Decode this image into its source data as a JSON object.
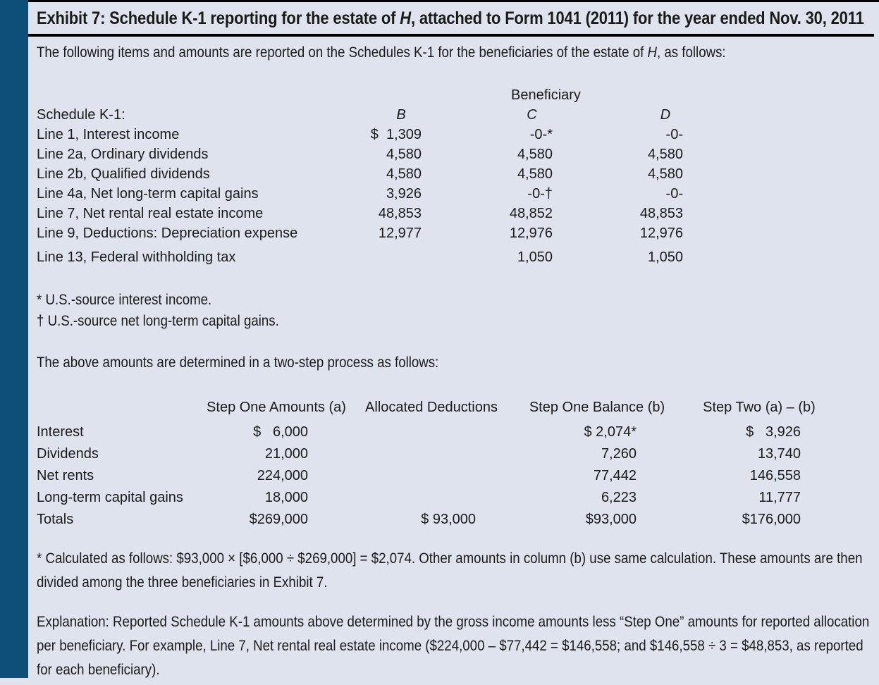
{
  "exhibit": {
    "title_pre": "Exhibit 7: Schedule K-1 reporting for the estate of ",
    "title_emph": "H",
    "title_post": ", attached to Form 1041 (2011) for the year ended Nov. 30, 2011"
  },
  "intro": {
    "pre": "The following items and amounts are reported on the Schedules K-1 for the beneficiaries of the estate of ",
    "emph": "H",
    "post": ", as follows:"
  },
  "k1_table": {
    "group_header": "Beneficiary",
    "header": {
      "label": "Schedule K-1:",
      "b": "B",
      "c": "C",
      "d": "D"
    },
    "rows": [
      {
        "label": "Line 1, Interest income",
        "b": "$  1,309",
        "c": "-0-*",
        "d": "-0-"
      },
      {
        "label": "Line 2a, Ordinary dividends",
        "b": "4,580",
        "c": "4,580",
        "d": "4,580"
      },
      {
        "label": "Line 2b, Qualified dividends",
        "b": "4,580",
        "c": "4,580",
        "d": "4,580"
      },
      {
        "label": "Line 4a, Net long-term capital gains",
        "b": "3,926",
        "c": "-0-†",
        "d": "-0-"
      },
      {
        "label": "Line 7, Net rental real estate income",
        "b": "48,853",
        "c": "48,852",
        "d": "48,853"
      },
      {
        "label": "Line 9, Deductions: Depreciation expense",
        "b": "12,977",
        "c": "12,976",
        "d": "12,976"
      },
      {
        "label": "Line 13, Federal withholding tax",
        "b": "",
        "c": "1,050",
        "d": "1,050"
      }
    ],
    "footnote_star": "* U.S.-source interest income.",
    "footnote_dagger": "† U.S.-source net long-term capital gains."
  },
  "process_intro": "The above amounts are determined in a two-step process as follows:",
  "step_table": {
    "header": {
      "c1": "Step One Amounts (a)",
      "c2": "Allocated Deductions",
      "c3": "Step One Balance (b)",
      "c4": "Step Two (a) – (b)"
    },
    "rows": [
      {
        "label": "Interest",
        "c1": "$   6,000",
        "c2": "",
        "c3": "$ 2,074*",
        "c4": "$   3,926"
      },
      {
        "label": "Dividends",
        "c1": "21,000",
        "c2": "",
        "c3": "7,260",
        "c4": "13,740"
      },
      {
        "label": "Net rents",
        "c1": "224,000",
        "c2": "",
        "c3": "77,442",
        "c4": "146,558"
      },
      {
        "label": "Long-term capital gains",
        "c1": "18,000",
        "c2": "",
        "c3": "6,223",
        "c4": "11,777"
      },
      {
        "label": "Totals",
        "c1": "$269,000",
        "c2": "$ 93,000",
        "c3": "$93,000",
        "c4": "$176,000"
      }
    ],
    "footnote": "* Calculated as follows: $93,000 × [$6,000 ÷ $269,000] = $2,074. Other amounts in column (b) use same calculation. These amounts are then divided among the three beneficiaries in Exhibit 7."
  },
  "explanation": "Explanation: Reported Schedule K-1 amounts above determined by the gross income amounts less “Step One” amounts for reported allocation per beneficiary. For example, Line 7, Net rental real estate income ($224,000 – $77,442 = $146,558; and $146,558 ÷ 3 = $48,853, as reported for each beneficiary).",
  "colors": {
    "sidebar_blue": "#0d4f78",
    "page_background": "#dee3ee",
    "rule_black": "#000000"
  }
}
